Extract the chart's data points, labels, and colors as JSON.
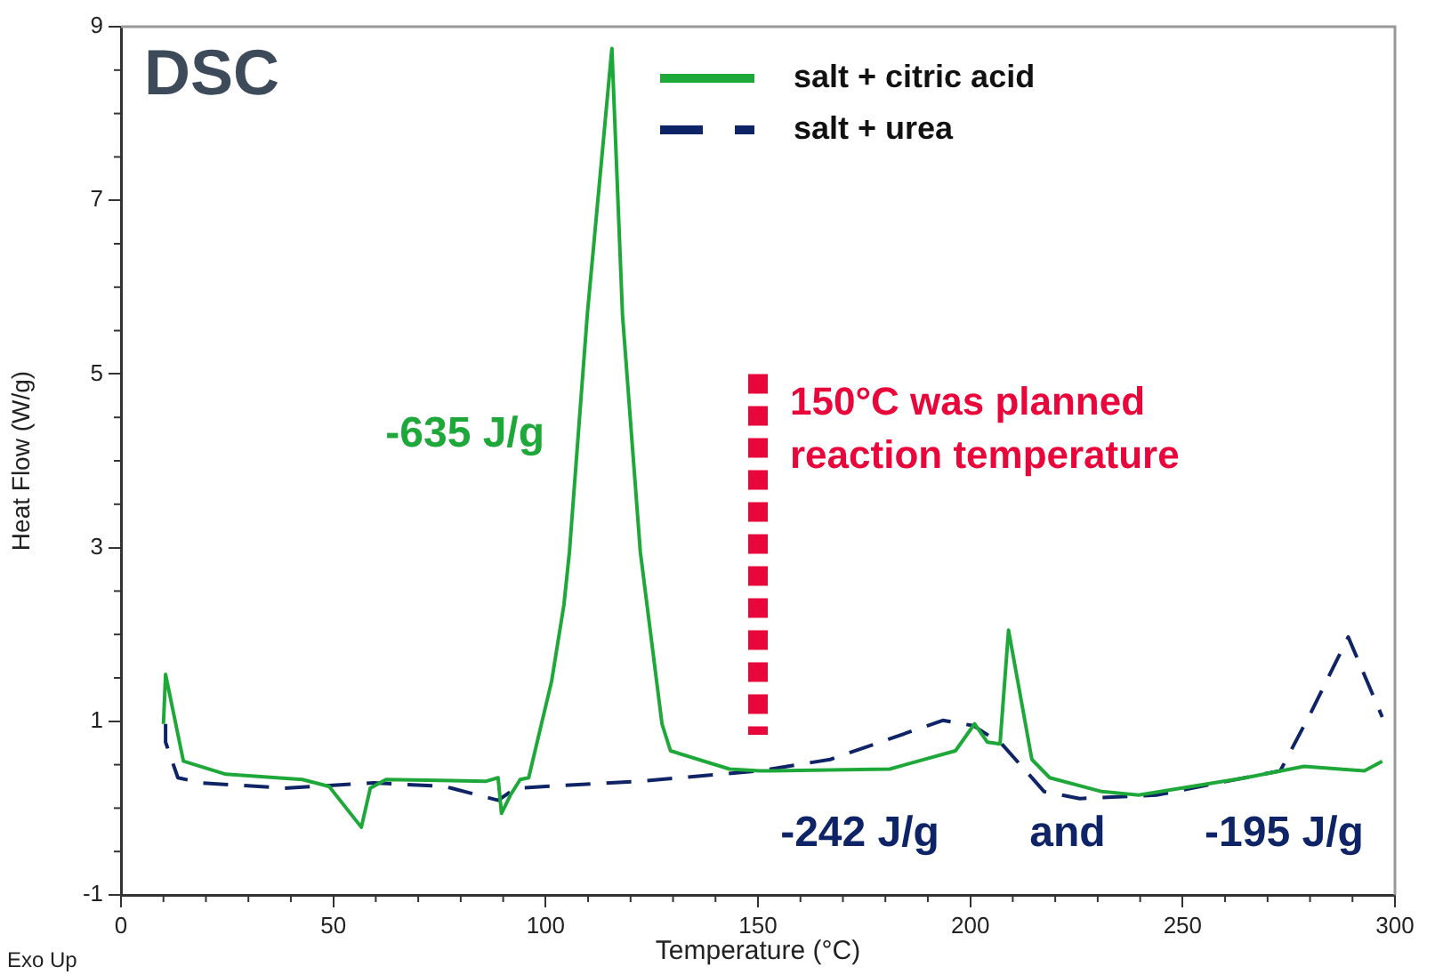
{
  "chart_data": {
    "type": "line",
    "title": "DSC",
    "xlabel": "Temperature (°C)",
    "ylabel": "Heat Flow (W/g)",
    "xlim": [
      0,
      300
    ],
    "xticks": [
      0,
      50,
      100,
      150,
      200,
      250,
      300
    ],
    "ylim": [
      -1,
      9
    ],
    "yticks": [
      -1,
      1,
      3,
      5,
      7,
      9
    ],
    "grid": false,
    "legend": "top right",
    "marker": "none",
    "series": [
      {
        "name": "salt + citric acid",
        "color": "#1fa83a",
        "line_style": "solid",
        "x": [
          10,
          10.5,
          14.7,
          24.7,
          42.7,
          49,
          56.6,
          58.7,
          62.4,
          86,
          88.8,
          89.6,
          91.7,
          94,
          96,
          101.4,
          104.3,
          105.6,
          109.8,
          115.6,
          118.1,
          122.3,
          127.4,
          129.4,
          143.3,
          150.4,
          153,
          181,
          196.5,
          201,
          204,
          207,
          209,
          214.5,
          218.7,
          231,
          239.6,
          264.8,
          278.6,
          287,
          292.8,
          297
        ],
        "values": [
          0.97,
          1.54,
          0.54,
          0.39,
          0.33,
          0.25,
          -0.22,
          0.23,
          0.33,
          0.31,
          0.35,
          -0.06,
          0.15,
          0.33,
          0.35,
          1.46,
          2.34,
          2.95,
          5.68,
          8.75,
          5.68,
          2.95,
          0.97,
          0.66,
          0.45,
          0.43,
          0.43,
          0.45,
          0.66,
          0.97,
          0.76,
          0.74,
          2.05,
          0.56,
          0.35,
          0.19,
          0.15,
          0.35,
          0.48,
          0.45,
          0.43,
          0.54
        ]
      },
      {
        "name": "salt + urea",
        "color": "#0f2466",
        "line_style": "dashed",
        "x": [
          10.5,
          10.5,
          13.4,
          18.9,
          38.5,
          59.5,
          76.2,
          88.8,
          93,
          122.3,
          150.4,
          167,
          193.5,
          200.7,
          207.4,
          217.4,
          225.8,
          243.8,
          273,
          280.3,
          289,
          297
        ],
        "values": [
          0.97,
          0.76,
          0.35,
          0.29,
          0.23,
          0.29,
          0.25,
          0.09,
          0.23,
          0.31,
          0.43,
          0.56,
          1.01,
          0.95,
          0.74,
          0.19,
          0.11,
          0.15,
          0.43,
          1.11,
          1.97,
          1.05
        ]
      }
    ],
    "ref_lines": [
      {
        "axis": "x",
        "value": 150,
        "label": "150°C was planned reaction temperature",
        "color": "#e8063a",
        "line_style": "dotted"
      }
    ],
    "annotations": [
      "-635 J/g",
      "-242 J/g",
      "and",
      "-195 J/g",
      "Exo Up"
    ]
  }
}
